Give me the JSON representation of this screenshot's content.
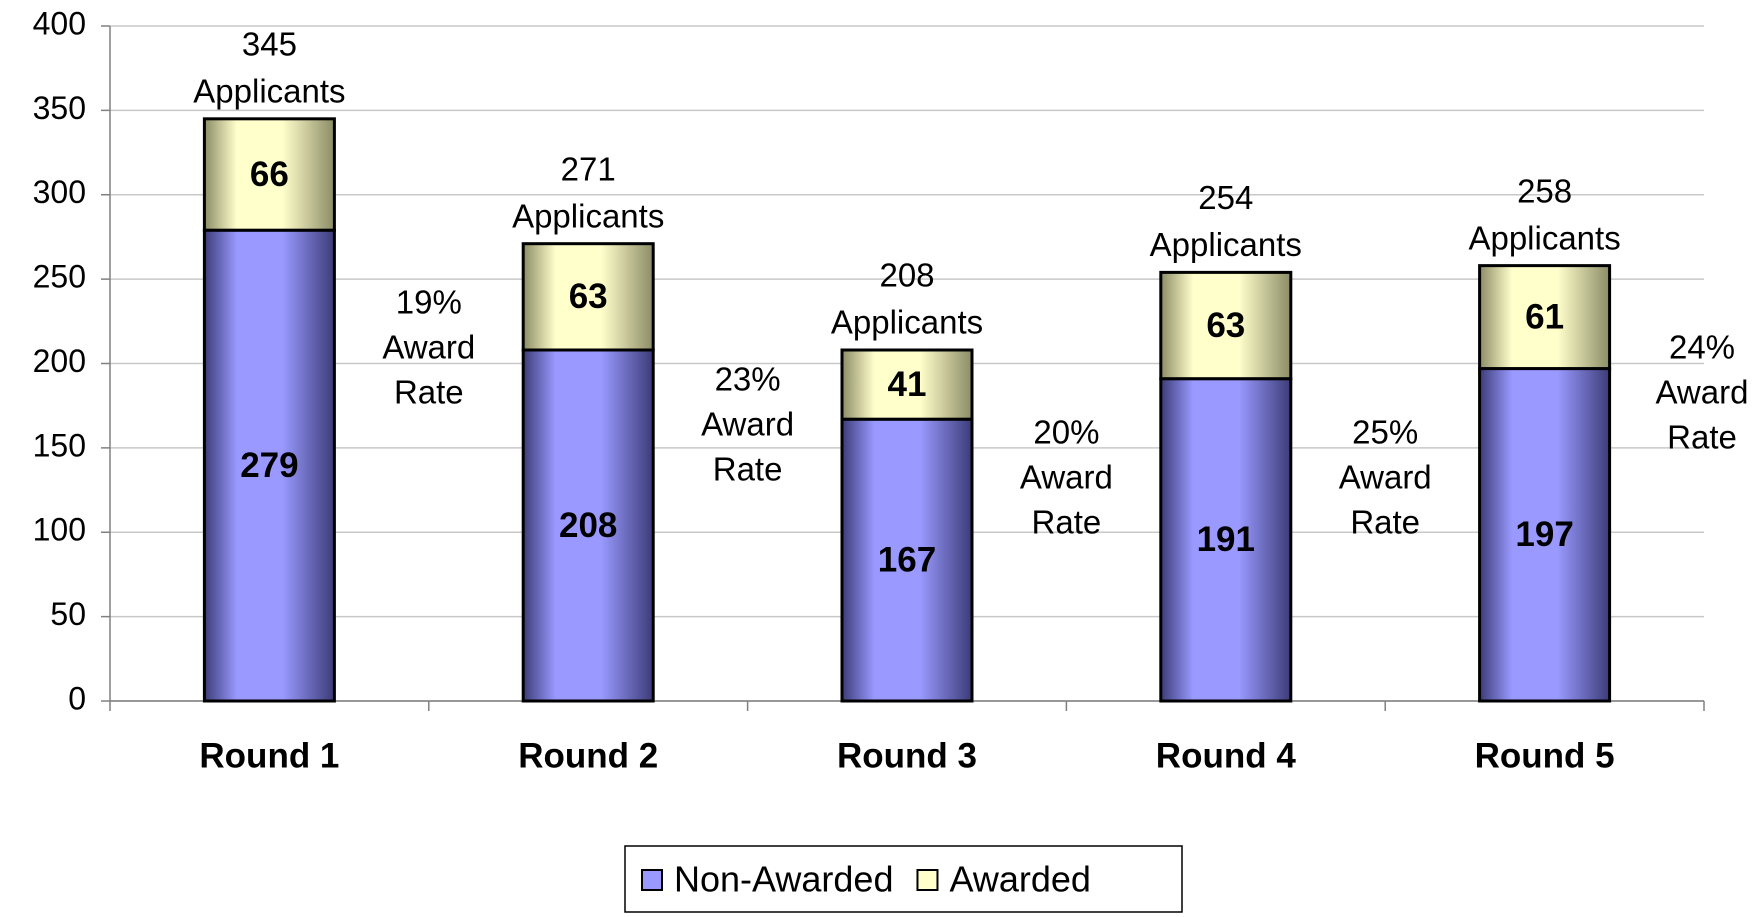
{
  "chart_data": {
    "type": "bar",
    "stacked": true,
    "categories": [
      "Round 1",
      "Round 2",
      "Round 3",
      "Round 4",
      "Round 5"
    ],
    "series": [
      {
        "name": "Non-Awarded",
        "color": "#9999ff",
        "values": [
          279,
          208,
          167,
          191,
          197
        ]
      },
      {
        "name": "Awarded",
        "color": "#ffffcc",
        "values": [
          66,
          63,
          41,
          63,
          61
        ]
      }
    ],
    "total_labels": [
      [
        "345",
        "Applicants"
      ],
      [
        "271",
        "Applicants"
      ],
      [
        "208",
        "Applicants"
      ],
      [
        "254",
        "Applicants"
      ],
      [
        "258",
        "Applicants"
      ]
    ],
    "rate_labels": [
      [
        "19%",
        "Award",
        "Rate"
      ],
      [
        "23%",
        "Award",
        "Rate"
      ],
      [
        "20%",
        "Award",
        "Rate"
      ],
      [
        "25%",
        "Award",
        "Rate"
      ],
      [
        "24%",
        "Award",
        "Rate"
      ]
    ],
    "ylim": [
      0,
      400
    ],
    "yticks": [
      0,
      50,
      100,
      150,
      200,
      250,
      300,
      350,
      400
    ],
    "grid": true,
    "legend": "bottom"
  }
}
